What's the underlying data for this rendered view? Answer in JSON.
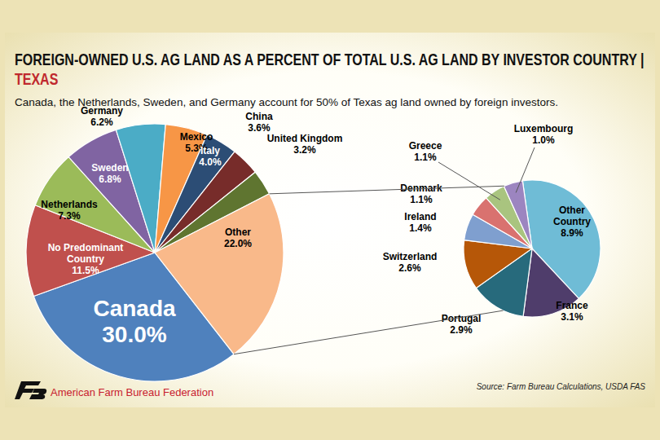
{
  "chart_data": [
    {
      "type": "pie",
      "title": "FOREIGN-OWNED U.S. AG LAND AS A PERCENT OF TOTAL U.S. AG LAND BY INVESTOR COUNTRY |",
      "title_highlight": "TEXAS",
      "subtitle": "Canada, the Netherlands, Sweden, and Germany account for 50% of Texas ag land owned by foreign investors.",
      "source": "Source: Farm Bureau Calculations, USDA FAS",
      "organization": "American Farm Bureau Federation",
      "categories": [
        "Canada",
        "No Predominant Country",
        "Netherlands",
        "Sweden",
        "Germany",
        "Mexico",
        "Italy",
        "China",
        "United Kingdom",
        "Other"
      ],
      "values": [
        30.0,
        11.5,
        7.3,
        6.8,
        6.2,
        5.3,
        4.0,
        3.6,
        3.2,
        22.0
      ],
      "value_labels": [
        "30.0%",
        "11.5%",
        "7.3%",
        "6.8%",
        "6.2%",
        "5.3%",
        "4.0%",
        "3.6%",
        "3.2%",
        "22.0%"
      ],
      "colors": [
        "#4f81bd",
        "#c0504d",
        "#9bbb59",
        "#8064a2",
        "#4bacc6",
        "#f79646",
        "#2c4d75",
        "#772c2a",
        "#5f7530",
        "#f9b98a"
      ],
      "data_labels": true
    },
    {
      "type": "pie",
      "categories": [
        "Other Country",
        "France",
        "Portugal",
        "Switzerland",
        "Ireland",
        "Denmark",
        "Greece",
        "Luxembourg"
      ],
      "values": [
        8.9,
        3.1,
        2.9,
        2.6,
        1.4,
        1.1,
        1.1,
        1.0
      ],
      "value_labels": [
        "8.9%",
        "3.1%",
        "2.9%",
        "2.6%",
        "1.4%",
        "1.1%",
        "1.1%",
        "1.0%"
      ],
      "colors": [
        "#6fbcd6",
        "#4f3d6b",
        "#276a7c",
        "#b65708",
        "#7f9fcf",
        "#d9726f",
        "#a9c47f",
        "#9c85c0"
      ],
      "data_labels": true
    }
  ]
}
